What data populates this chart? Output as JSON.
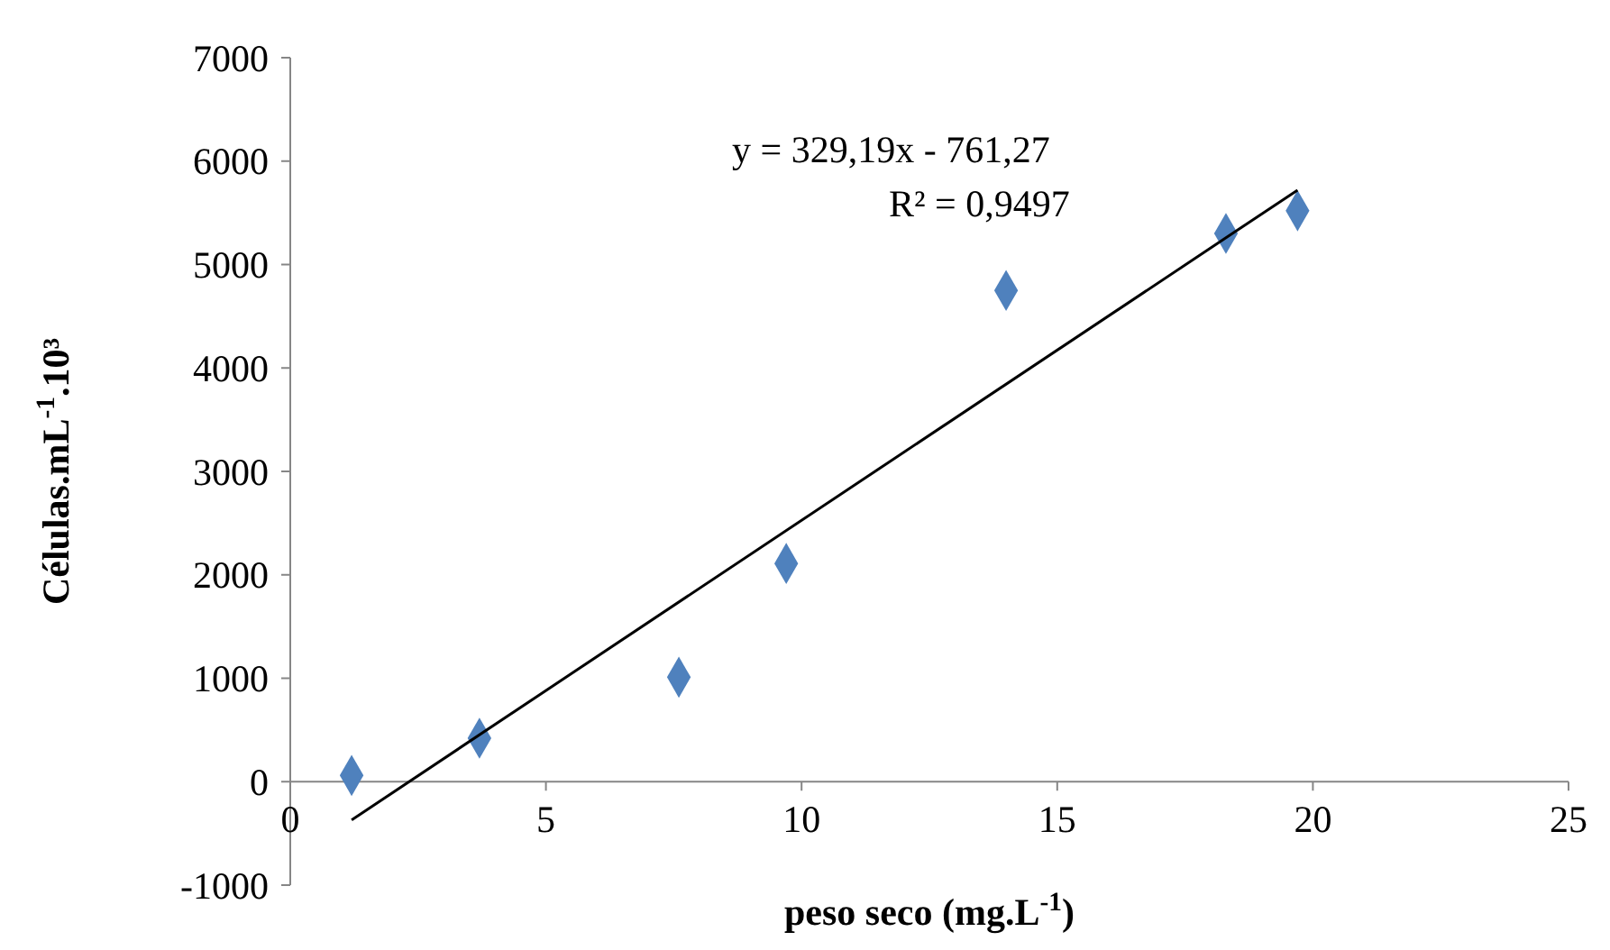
{
  "chart_data": {
    "type": "scatter",
    "xlabel": "peso seco (mg.L$^{-1}$)",
    "ylabel": "Células.mL$^{-1}$.10³",
    "xlim": [
      0,
      25
    ],
    "xticks": [
      0,
      5,
      10,
      15,
      20,
      25
    ],
    "ylim": [
      -1000,
      7000
    ],
    "yticks": [
      -1000,
      0,
      1000,
      2000,
      3000,
      4000,
      5000,
      6000,
      7000
    ],
    "grid": false,
    "marker": "diamond",
    "series": [
      {
        "color": "#4f81bd",
        "x": [
          1.2,
          3.7,
          7.6,
          9.7,
          14.0,
          18.3,
          19.7
        ],
        "values": [
          60,
          420,
          1010,
          2110,
          4750,
          5300,
          5520
        ]
      },
      {
        "type": "line",
        "color": "#000000",
        "x": [
          1.2,
          19.7
        ],
        "values": [
          -370,
          5720
        ],
        "line_style": "solid",
        "marker": "none"
      }
    ],
    "annotations": [
      "y = 329,19x - 761,27",
      "R² = 0,9497"
    ]
  }
}
